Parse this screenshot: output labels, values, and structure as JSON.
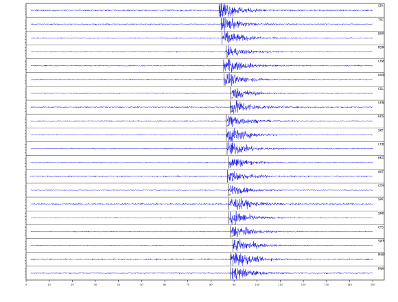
{
  "chart_data": {
    "type": "line",
    "title": "",
    "xlabel": "",
    "ylabel": "",
    "xlim": [
      0,
      155
    ],
    "grid": false,
    "x_ticks": [
      "0",
      "10",
      "20",
      "30",
      "40",
      "50",
      "60",
      "70",
      "80",
      "90",
      "100",
      "110",
      "120",
      "130",
      "140",
      "150"
    ],
    "trace_color": "#0000e6",
    "pick_color": "#000000",
    "stations": [
      {
        "name": "STA",
        "arrival": 83.5,
        "amp": 0.9,
        "noise": 0.08,
        "pick": "P"
      },
      {
        "name": "TSC",
        "arrival": 84.5,
        "amp": 0.7,
        "noise": 0.06,
        "pick": ""
      },
      {
        "name": "DNR",
        "arrival": 84.8,
        "amp": 0.75,
        "noise": 0.06,
        "pick": ""
      },
      {
        "name": "PDM",
        "arrival": 86.5,
        "amp": 0.5,
        "noise": 0.05,
        "pick": "P"
      },
      {
        "name": "CRW",
        "arrival": 85.5,
        "amp": 0.8,
        "noise": 0.06,
        "pick": ""
      },
      {
        "name": "HWB",
        "arrival": 85.6,
        "amp": 0.7,
        "noise": 0.06,
        "pick": ""
      },
      {
        "name": "CSL",
        "arrival": 88.5,
        "amp": 0.6,
        "noise": 0.05,
        "pick": "P"
      },
      {
        "name": "CRN",
        "arrival": 88.3,
        "amp": 0.85,
        "noise": 0.07,
        "pick": "P"
      },
      {
        "name": "KDS",
        "arrival": 86.6,
        "amp": 0.7,
        "noise": 0.06,
        "pick": "P"
      },
      {
        "name": "SKT",
        "arrival": 86.6,
        "amp": 0.9,
        "noise": 0.05,
        "pick": ""
      },
      {
        "name": "CRB",
        "arrival": 87.0,
        "amp": 0.8,
        "noise": 0.05,
        "pick": ""
      },
      {
        "name": "BKD",
        "arrival": 87.6,
        "amp": 0.6,
        "noise": 0.05,
        "pick": "P"
      },
      {
        "name": "ORT",
        "arrival": 87.2,
        "amp": 0.6,
        "noise": 0.07,
        "pick": ""
      },
      {
        "name": "CTM",
        "arrival": 87.5,
        "amp": 0.5,
        "noise": 0.05,
        "pick": "P"
      },
      {
        "name": "SPR",
        "arrival": 87.6,
        "amp": 0.75,
        "noise": 0.09,
        "pick": ""
      },
      {
        "name": "SMR",
        "arrival": 87.8,
        "amp": 0.8,
        "noise": 0.05,
        "pick": ""
      },
      {
        "name": "CTS",
        "arrival": 88.5,
        "amp": 0.7,
        "noise": 0.05,
        "pick": "P"
      },
      {
        "name": "SWN",
        "arrival": 89.5,
        "amp": 0.8,
        "noise": 0.05,
        "pick": ""
      },
      {
        "name": "MKW",
        "arrival": 88.5,
        "amp": 0.9,
        "noise": 0.08,
        "pick": ""
      },
      {
        "name": "PNM",
        "arrival": 88.5,
        "amp": 0.75,
        "noise": 0.06,
        "pick": ""
      }
    ]
  }
}
